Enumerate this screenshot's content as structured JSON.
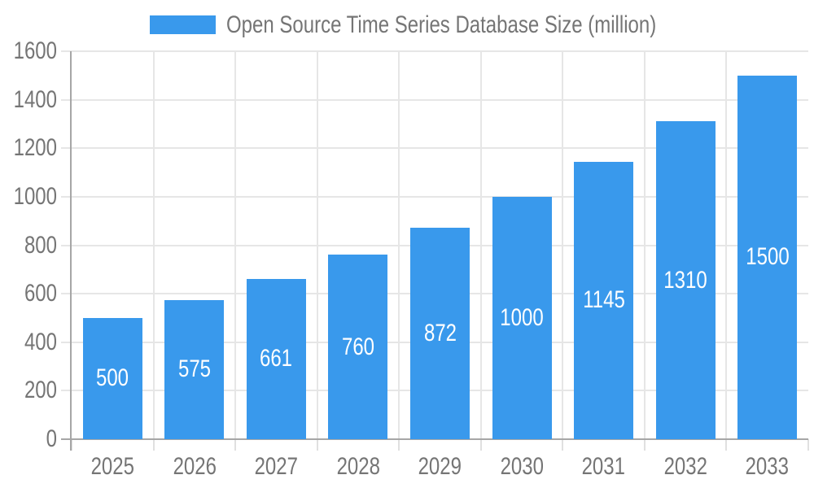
{
  "chart_data": {
    "type": "bar",
    "title": "Open Source Time Series Database Size (million)",
    "legend": {
      "label": "Open Source Time Series Database Size (million)",
      "position": "top-center"
    },
    "categories": [
      "2025",
      "2026",
      "2027",
      "2028",
      "2029",
      "2030",
      "2031",
      "2032",
      "2033"
    ],
    "series": [
      {
        "name": "Open Source Time Series Database Size (million)",
        "values": [
          500,
          575,
          661,
          760,
          872,
          1000,
          1145,
          1310,
          1500
        ]
      }
    ],
    "bar_value_labels": [
      "500",
      "575",
      "661",
      "760",
      "872",
      "1000",
      "1145",
      "1310",
      "1500"
    ],
    "xlabel": "",
    "ylabel": "",
    "ylim": [
      0,
      1600
    ],
    "yticks": [
      0,
      200,
      400,
      600,
      800,
      1000,
      1200,
      1400,
      1600
    ],
    "grid": true,
    "colors": {
      "bar": "#3999EC",
      "axis_text": "#757575",
      "bar_label_text": "#FFFFFF",
      "gridline": "#E6E6E6",
      "tick": "#E0E0E0",
      "axis_line": "#A6A6A6",
      "background": "#FFFFFF"
    }
  }
}
